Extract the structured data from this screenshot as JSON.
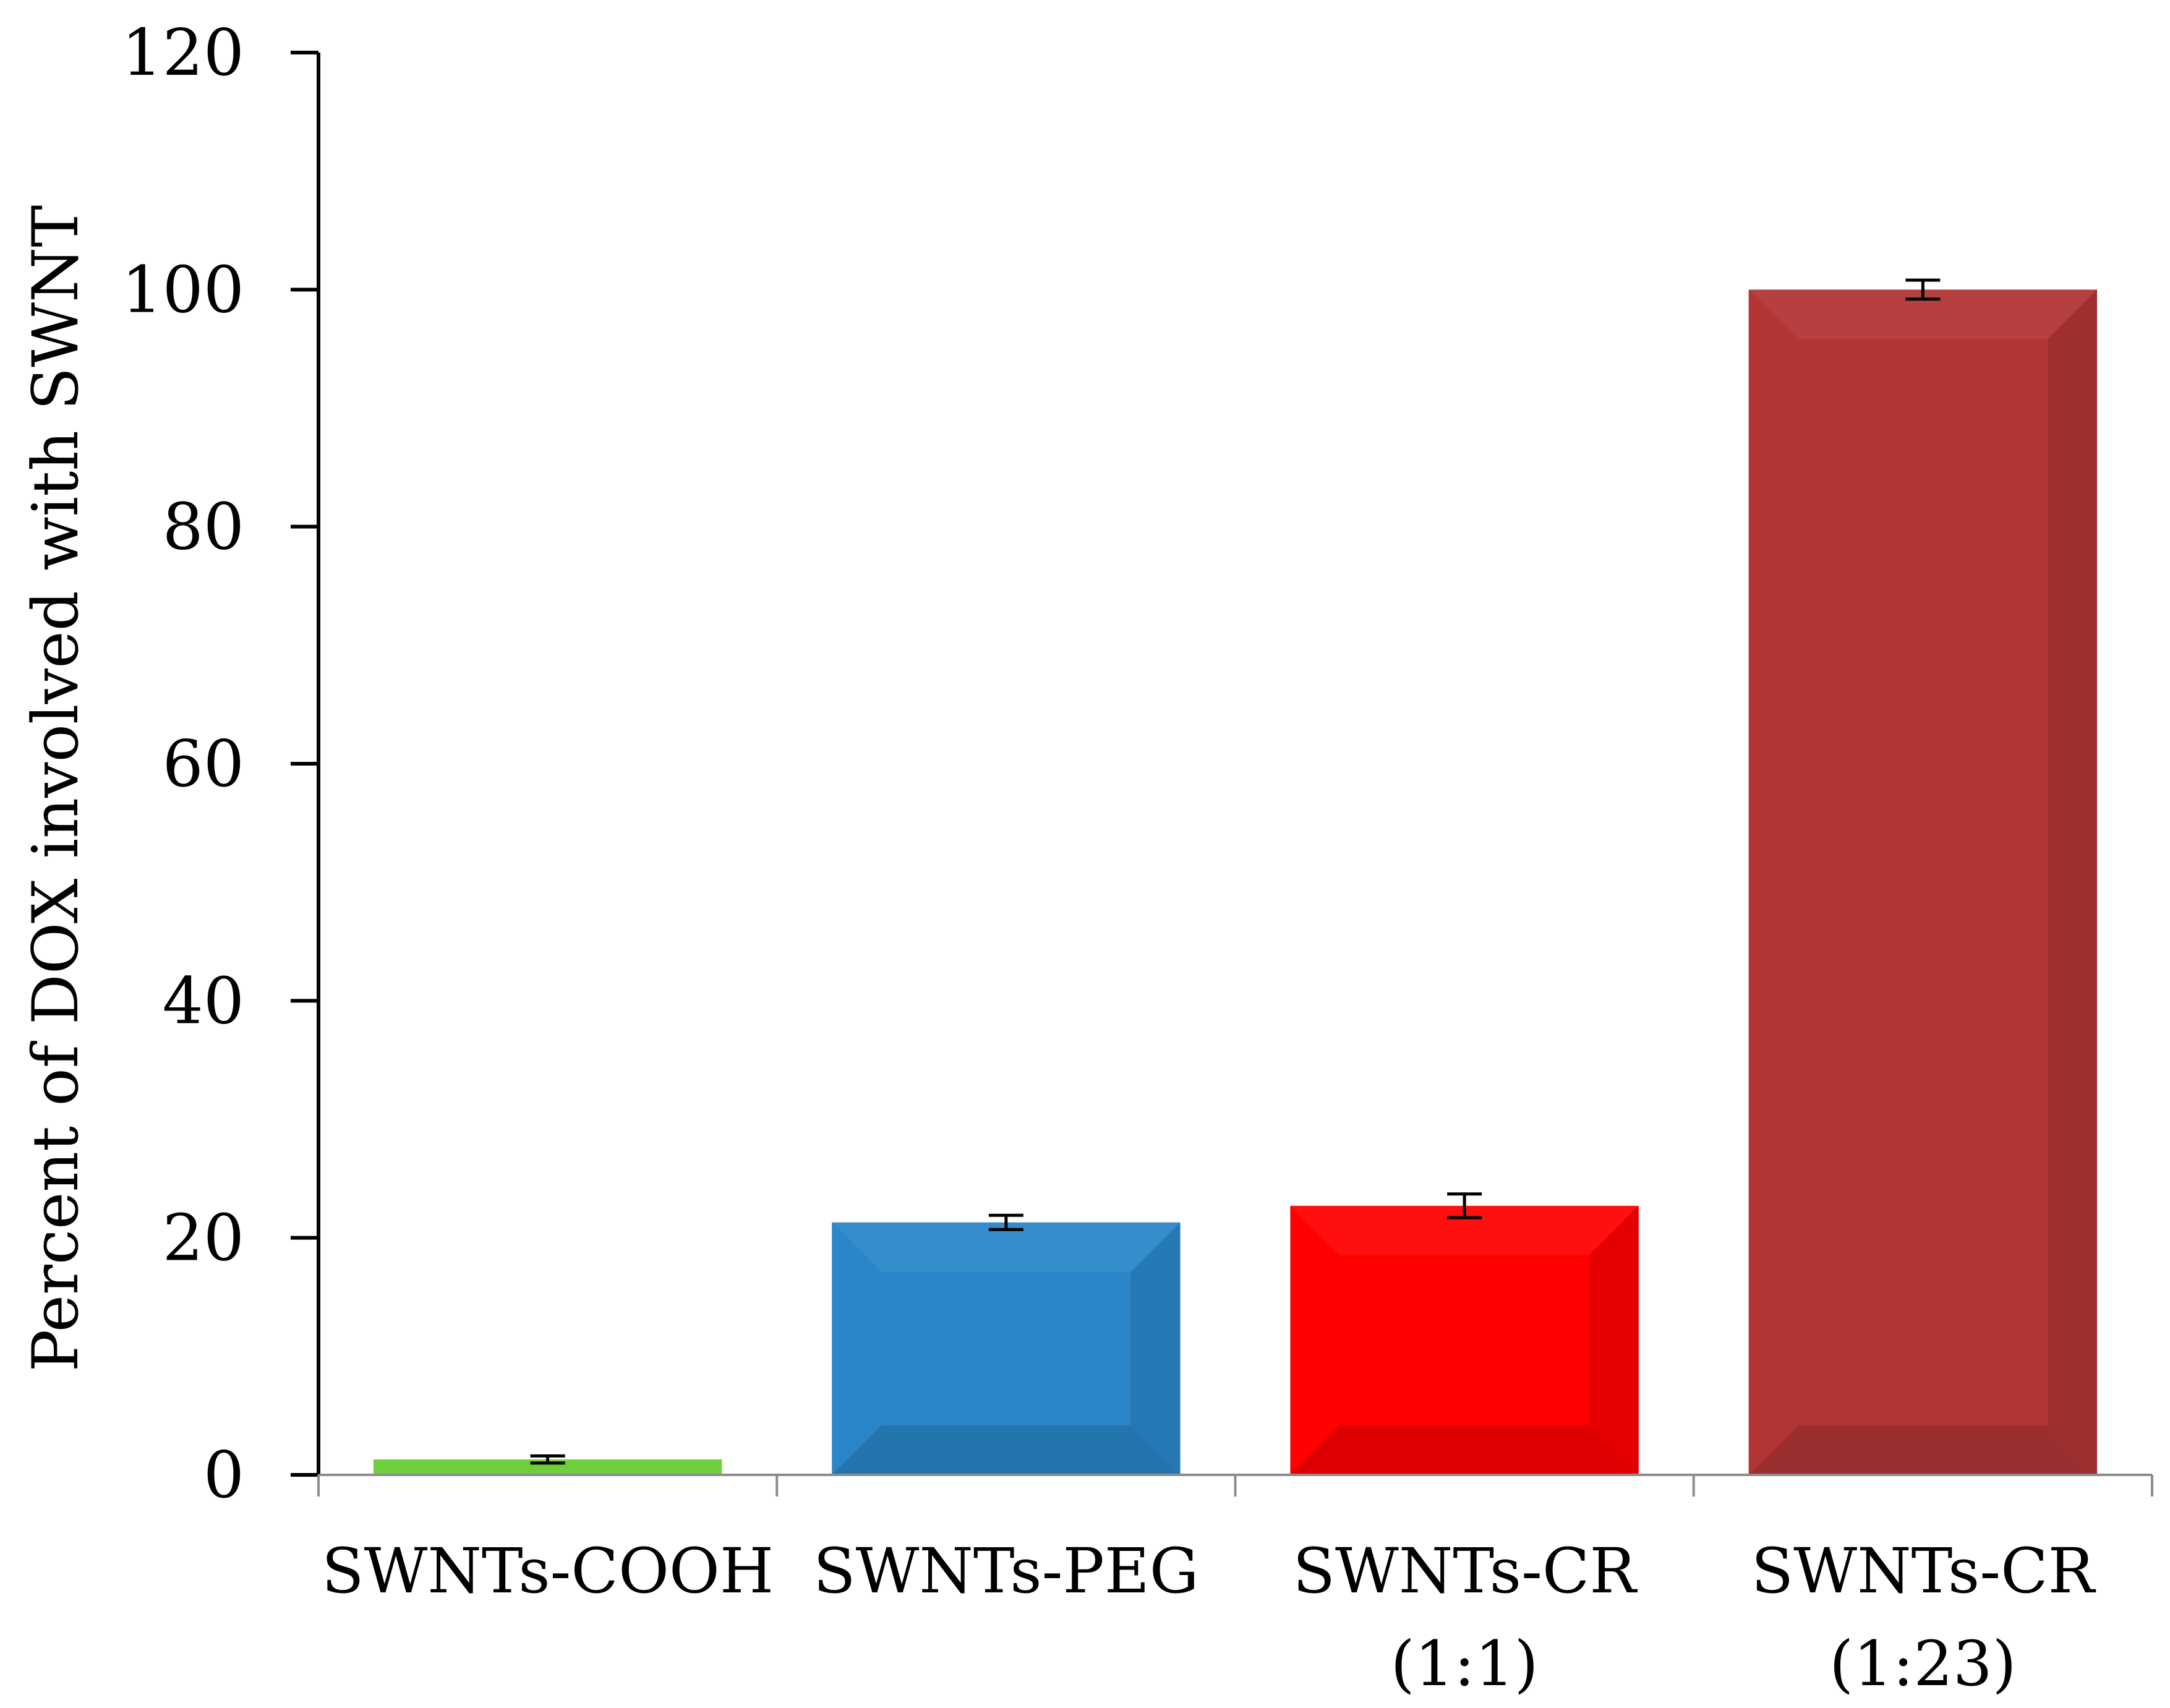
{
  "chart_data": {
    "type": "bar",
    "categories": [
      [
        "SWNTs-COOH"
      ],
      [
        "SWNTs-PEG"
      ],
      [
        "SWNTs-CR",
        "(1:1)"
      ],
      [
        "SWNTs-CR",
        "(1:23)"
      ]
    ],
    "values": [
      1.3,
      21.3,
      22.7,
      100.0
    ],
    "errors": [
      0.3,
      0.6,
      1.0,
      0.8
    ],
    "colors": [
      "#6fcf3a",
      "#2a86c8",
      "#ff0000",
      "#b23535"
    ],
    "ylabel": "Percent of DOX involved with SWNT",
    "xlabel": "",
    "ylim": [
      0,
      120
    ],
    "yticks": [
      0,
      20,
      40,
      60,
      80,
      100,
      120
    ],
    "grid": false,
    "legend": "none"
  }
}
